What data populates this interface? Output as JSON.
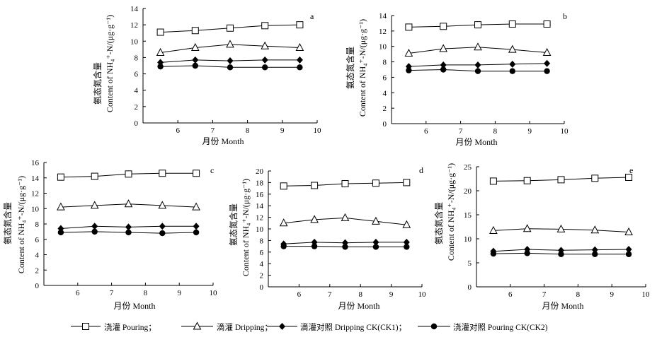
{
  "figure": {
    "legend": [
      {
        "marker": "square-open",
        "label": "浇灌 Pouring；"
      },
      {
        "marker": "triangle-open",
        "label": "滴灌 Dripping；"
      },
      {
        "marker": "diamond-filled",
        "label": "滴灌对照 Dripping CK(CK1)；"
      },
      {
        "marker": "circle-filled",
        "label": "浇灌对照  Pouring CK(CK2)"
      }
    ]
  },
  "chart_data": [
    {
      "type": "line",
      "panel": "a",
      "ylabel_cn": "氨态氮含量",
      "ylabel_en": "Content of NH₄⁺-N/(μg·g⁻¹)",
      "xlabel": "月份 Month",
      "x": [
        5.5,
        6.5,
        7.5,
        8.5,
        9.5
      ],
      "xlim": [
        5,
        10
      ],
      "xticks": [
        6,
        7,
        8,
        9,
        10
      ],
      "ylim": [
        0,
        14
      ],
      "yticks": [
        0,
        2,
        4,
        6,
        8,
        10,
        12,
        14
      ],
      "series": [
        {
          "name": "浇灌 Pouring",
          "marker": "square-open",
          "values": [
            11.1,
            11.3,
            11.6,
            11.9,
            12.0
          ]
        },
        {
          "name": "滴灌 Dripping",
          "marker": "triangle-open",
          "values": [
            8.6,
            9.2,
            9.6,
            9.4,
            9.2
          ]
        },
        {
          "name": "滴灌对照 Dripping CK(CK1)",
          "marker": "diamond-filled",
          "values": [
            7.4,
            7.7,
            7.6,
            7.7,
            7.7
          ]
        },
        {
          "name": "浇灌对照 Pouring CK(CK2)",
          "marker": "circle-filled",
          "values": [
            6.9,
            7.0,
            6.8,
            6.8,
            6.8
          ]
        }
      ]
    },
    {
      "type": "line",
      "panel": "b",
      "ylabel_cn": "氨态氮含量",
      "ylabel_en": "Content of NH₄⁺-N/(μg·g⁻¹)",
      "xlabel": "月份 Month",
      "x": [
        5.5,
        6.5,
        7.5,
        8.5,
        9.5
      ],
      "xlim": [
        5,
        10
      ],
      "xticks": [
        6,
        7,
        8,
        9,
        10
      ],
      "ylim": [
        0,
        14
      ],
      "yticks": [
        0,
        2,
        4,
        6,
        8,
        10,
        12,
        14
      ],
      "series": [
        {
          "name": "浇灌 Pouring",
          "marker": "square-open",
          "values": [
            12.5,
            12.6,
            12.8,
            12.9,
            12.9
          ]
        },
        {
          "name": "滴灌 Dripping",
          "marker": "triangle-open",
          "values": [
            9.1,
            9.7,
            9.9,
            9.6,
            9.2
          ]
        },
        {
          "name": "滴灌对照 Dripping CK(CK1)",
          "marker": "diamond-filled",
          "values": [
            7.4,
            7.6,
            7.6,
            7.7,
            7.8
          ]
        },
        {
          "name": "浇灌对照 Pouring CK(CK2)",
          "marker": "circle-filled",
          "values": [
            6.9,
            7.0,
            6.8,
            6.8,
            6.8
          ]
        }
      ]
    },
    {
      "type": "line",
      "panel": "c",
      "ylabel_cn": "氨态氮含量",
      "ylabel_en": "Content of NH₄⁺-N/(μg·g⁻¹)",
      "xlabel": "月份 Month",
      "x": [
        5.5,
        6.5,
        7.5,
        8.5,
        9.5
      ],
      "xlim": [
        5,
        10
      ],
      "xticks": [
        6,
        7,
        8,
        9,
        10
      ],
      "ylim": [
        0,
        16
      ],
      "yticks": [
        0,
        2,
        4,
        6,
        8,
        10,
        12,
        14,
        16
      ],
      "series": [
        {
          "name": "浇灌 Pouring",
          "marker": "square-open",
          "values": [
            14.1,
            14.2,
            14.5,
            14.6,
            14.6
          ]
        },
        {
          "name": "滴灌 Dripping",
          "marker": "triangle-open",
          "values": [
            10.2,
            10.4,
            10.6,
            10.4,
            10.2
          ]
        },
        {
          "name": "滴灌对照 Dripping CK(CK1)",
          "marker": "diamond-filled",
          "values": [
            7.4,
            7.7,
            7.6,
            7.7,
            7.7
          ]
        },
        {
          "name": "浇灌对照 Pouring CK(CK2)",
          "marker": "circle-filled",
          "values": [
            6.9,
            7.0,
            6.9,
            6.8,
            6.9
          ]
        }
      ]
    },
    {
      "type": "line",
      "panel": "d",
      "ylabel_cn": "氨态氮含量",
      "ylabel_en": "Content of NH₄⁺-N/(μg·g⁻¹)",
      "xlabel": "月份 Month",
      "x": [
        5.5,
        6.5,
        7.5,
        8.5,
        9.5
      ],
      "xlim": [
        5,
        10
      ],
      "xticks": [
        6,
        7,
        8,
        9,
        10
      ],
      "ylim": [
        0,
        20
      ],
      "yticks": [
        0,
        2,
        4,
        6,
        8,
        10,
        12,
        14,
        16,
        18,
        20
      ],
      "series": [
        {
          "name": "浇灌 Pouring",
          "marker": "square-open",
          "values": [
            17.4,
            17.5,
            17.8,
            17.9,
            18.0
          ]
        },
        {
          "name": "滴灌 Dripping",
          "marker": "triangle-open",
          "values": [
            11.0,
            11.6,
            11.9,
            11.3,
            10.7
          ]
        },
        {
          "name": "滴灌对照 Dripping CK(CK1)",
          "marker": "diamond-filled",
          "values": [
            7.4,
            7.7,
            7.6,
            7.7,
            7.7
          ]
        },
        {
          "name": "浇灌对照 Pouring CK(CK2)",
          "marker": "circle-filled",
          "values": [
            7.0,
            7.0,
            6.9,
            6.9,
            6.9
          ]
        }
      ]
    },
    {
      "type": "line",
      "panel": "e",
      "ylabel_cn": "氨态氮含量",
      "ylabel_en": "Content of NH₄⁺-N/(μg·g⁻¹)",
      "xlabel": "月份 Month",
      "x": [
        5.5,
        6.5,
        7.5,
        8.5,
        9.5
      ],
      "xlim": [
        5,
        10
      ],
      "xticks": [
        6,
        7,
        8,
        9,
        10
      ],
      "ylim": [
        0,
        25
      ],
      "yticks": [
        0,
        5,
        10,
        15,
        20,
        25
      ],
      "series": [
        {
          "name": "浇灌 Pouring",
          "marker": "square-open",
          "values": [
            22.0,
            22.1,
            22.3,
            22.6,
            22.8
          ]
        },
        {
          "name": "滴灌 Dripping",
          "marker": "triangle-open",
          "values": [
            11.7,
            12.1,
            12.0,
            11.8,
            11.4
          ]
        },
        {
          "name": "滴灌对照 Dripping CK(CK1)",
          "marker": "diamond-filled",
          "values": [
            7.4,
            7.8,
            7.6,
            7.7,
            7.8
          ]
        },
        {
          "name": "浇灌对照 Pouring CK(CK2)",
          "marker": "circle-filled",
          "values": [
            6.9,
            7.0,
            6.8,
            6.8,
            6.8
          ]
        }
      ]
    }
  ]
}
